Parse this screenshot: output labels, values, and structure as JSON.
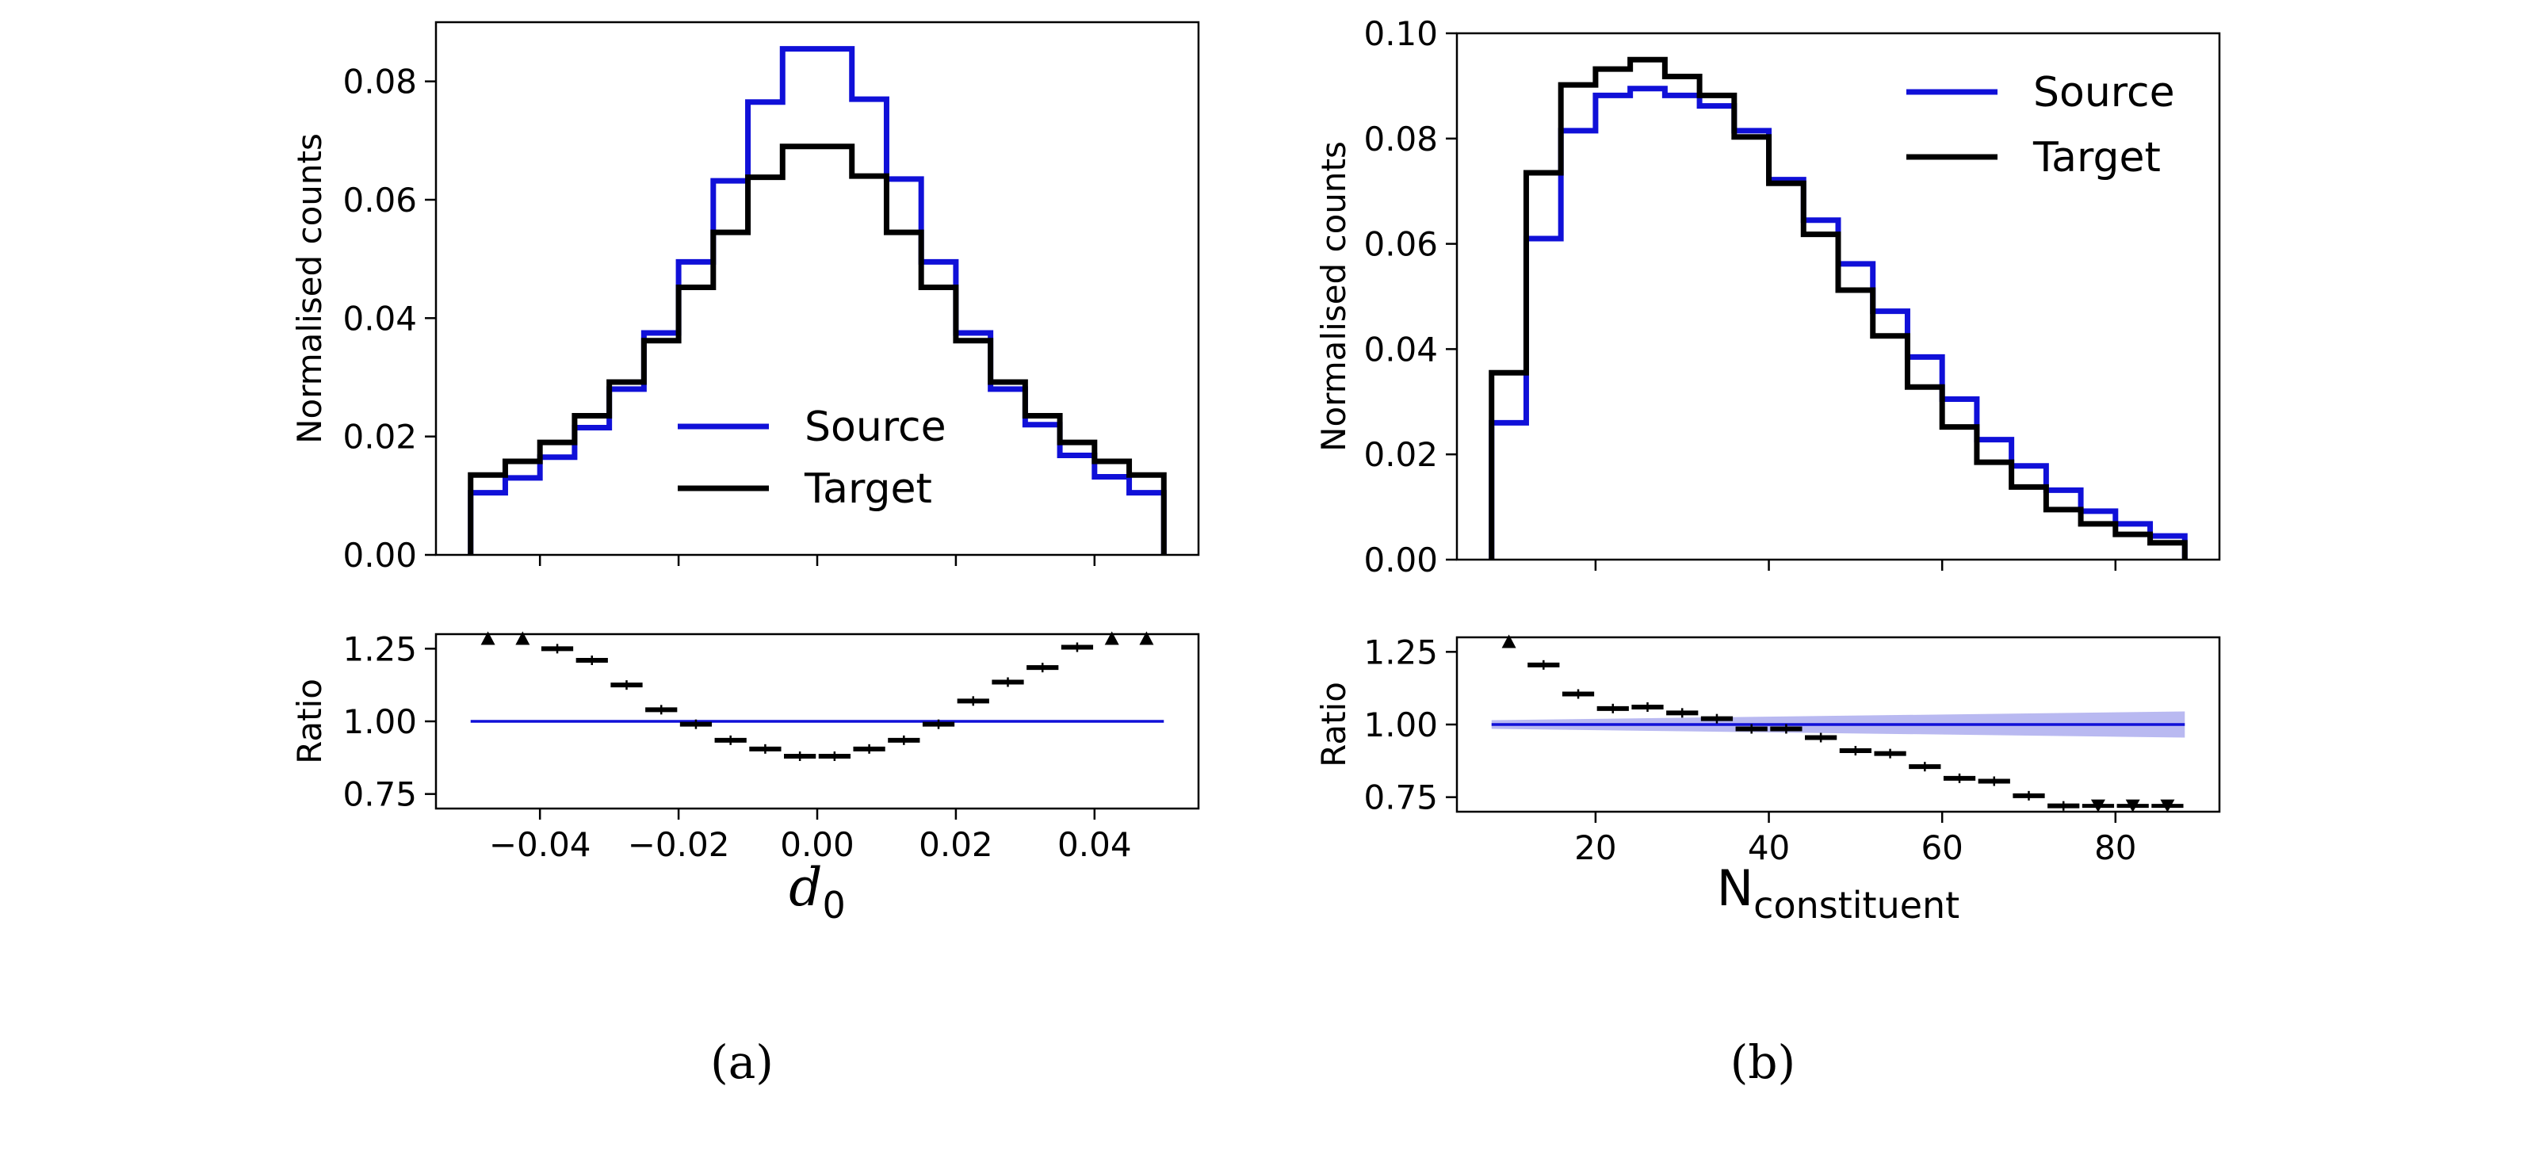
{
  "colors": {
    "source": "#1010d8",
    "target": "#000000",
    "band": "#8080e6"
  },
  "chart_data": [
    {
      "type": "histogram",
      "panel": "main",
      "caption": "(a)",
      "xlabel_main": "d",
      "xlabel_sub": "0",
      "ylabel": "Normalised counts",
      "xlim": [
        -0.055,
        0.055
      ],
      "ylim": [
        0,
        0.09
      ],
      "xticks": [
        -0.04,
        -0.02,
        0.0,
        0.02,
        0.04
      ],
      "xtick_labels": [
        "−0.04",
        "−0.02",
        "0.00",
        "0.02",
        "0.04"
      ],
      "yticks": [
        0,
        0.02,
        0.04,
        0.06,
        0.08
      ],
      "ytick_labels": [
        "0.00",
        "0.02",
        "0.04",
        "0.06",
        "0.08"
      ],
      "legend": {
        "position": "center",
        "entries": [
          "Source",
          "Target"
        ]
      },
      "bin_edges": [
        -0.05,
        -0.045,
        -0.04,
        -0.035,
        -0.03,
        -0.025,
        -0.02,
        -0.015,
        -0.01,
        -0.005,
        0.0,
        0.005,
        0.01,
        0.015,
        0.02,
        0.025,
        0.03,
        0.035,
        0.04,
        0.045,
        0.05
      ],
      "series": [
        {
          "name": "Source",
          "values": [
            0.0105,
            0.013,
            0.0165,
            0.0215,
            0.028,
            0.0375,
            0.0495,
            0.0632,
            0.0765,
            0.0855,
            0.0855,
            0.077,
            0.0635,
            0.0495,
            0.0375,
            0.028,
            0.022,
            0.0168,
            0.0132,
            0.0105
          ]
        },
        {
          "name": "Target",
          "values": [
            0.0135,
            0.0158,
            0.019,
            0.0235,
            0.0292,
            0.0362,
            0.0452,
            0.0545,
            0.0638,
            0.069,
            0.069,
            0.064,
            0.0545,
            0.0452,
            0.0362,
            0.0292,
            0.0235,
            0.019,
            0.0158,
            0.0135
          ]
        }
      ]
    },
    {
      "type": "scatter",
      "panel": "ratio",
      "ylabel": "Ratio",
      "xlim": [
        -0.055,
        0.055
      ],
      "ylim": [
        0.7,
        1.3
      ],
      "yticks": [
        0.75,
        1.0,
        1.25
      ],
      "ytick_labels": [
        "0.75",
        "1.00",
        "1.25"
      ],
      "reference_line": 1.0,
      "x": [
        -0.0475,
        -0.0425,
        -0.0375,
        -0.0325,
        -0.0275,
        -0.0225,
        -0.0175,
        -0.0125,
        -0.0075,
        -0.0025,
        0.0025,
        0.0075,
        0.0125,
        0.0175,
        0.0225,
        0.0275,
        0.0325,
        0.0375,
        0.0425,
        0.0475
      ],
      "values": [
        1.285,
        1.285,
        1.25,
        1.21,
        1.125,
        1.04,
        0.99,
        0.935,
        0.905,
        0.88,
        0.88,
        0.905,
        0.935,
        0.99,
        1.07,
        1.135,
        1.185,
        1.255,
        1.285,
        1.285
      ],
      "markers": [
        "up",
        "up",
        "bar",
        "bar",
        "bar",
        "bar",
        "bar",
        "bar",
        "bar",
        "bar",
        "bar",
        "bar",
        "bar",
        "bar",
        "bar",
        "bar",
        "bar",
        "bar",
        "up",
        "up"
      ]
    },
    {
      "type": "histogram",
      "panel": "main",
      "caption": "(b)",
      "xlabel_main": "N",
      "xlabel_sub": "constituent",
      "ylabel": "Normalised counts",
      "xlim": [
        4,
        92
      ],
      "ylim": [
        0,
        0.1
      ],
      "xticks": [
        20,
        40,
        60,
        80
      ],
      "xtick_labels": [
        "20",
        "40",
        "60",
        "80"
      ],
      "yticks": [
        0,
        0.02,
        0.04,
        0.06,
        0.08,
        0.1
      ],
      "ytick_labels": [
        "0.00",
        "0.02",
        "0.04",
        "0.06",
        "0.08",
        "0.10"
      ],
      "legend": {
        "position": "upper right",
        "entries": [
          "Source",
          "Target"
        ]
      },
      "bin_edges": [
        8,
        12,
        16,
        20,
        24,
        28,
        32,
        36,
        40,
        44,
        48,
        52,
        56,
        60,
        64,
        68,
        72,
        76,
        80,
        84,
        88
      ],
      "series": [
        {
          "name": "Source",
          "values": [
            0.026,
            0.061,
            0.0815,
            0.0882,
            0.0895,
            0.0882,
            0.0862,
            0.0815,
            0.0722,
            0.0645,
            0.0562,
            0.0472,
            0.0385,
            0.0305,
            0.0228,
            0.0178,
            0.0132,
            0.0092,
            0.0068,
            0.0045
          ]
        },
        {
          "name": "Target",
          "values": [
            0.0355,
            0.0735,
            0.0902,
            0.0932,
            0.095,
            0.0918,
            0.0882,
            0.0803,
            0.0715,
            0.0618,
            0.0512,
            0.0425,
            0.0328,
            0.0252,
            0.0185,
            0.0138,
            0.0095,
            0.0068,
            0.0048,
            0.0032
          ]
        }
      ]
    },
    {
      "type": "scatter",
      "panel": "ratio",
      "ylabel": "Ratio",
      "xlim": [
        4,
        92
      ],
      "ylim": [
        0.7,
        1.3
      ],
      "yticks": [
        0.75,
        1.0,
        1.25
      ],
      "ytick_labels": [
        "0.75",
        "1.00",
        "1.25"
      ],
      "reference_line": 1.0,
      "band_halfwidth_start": 0.015,
      "band_halfwidth_end": 0.045,
      "x": [
        10,
        14,
        18,
        22,
        26,
        30,
        34,
        38,
        42,
        46,
        50,
        54,
        58,
        62,
        66,
        70,
        74,
        78,
        82,
        86
      ],
      "values": [
        1.285,
        1.205,
        1.105,
        1.055,
        1.06,
        1.04,
        1.02,
        0.985,
        0.985,
        0.955,
        0.91,
        0.9,
        0.855,
        0.815,
        0.805,
        0.755,
        0.72,
        0.72,
        0.72,
        0.72
      ],
      "markers": [
        "up",
        "bar",
        "bar",
        "bar",
        "bar",
        "bar",
        "bar",
        "bar",
        "bar",
        "bar",
        "bar",
        "bar",
        "bar",
        "bar",
        "bar",
        "bar",
        "bar",
        "down",
        "down",
        "down"
      ]
    }
  ]
}
